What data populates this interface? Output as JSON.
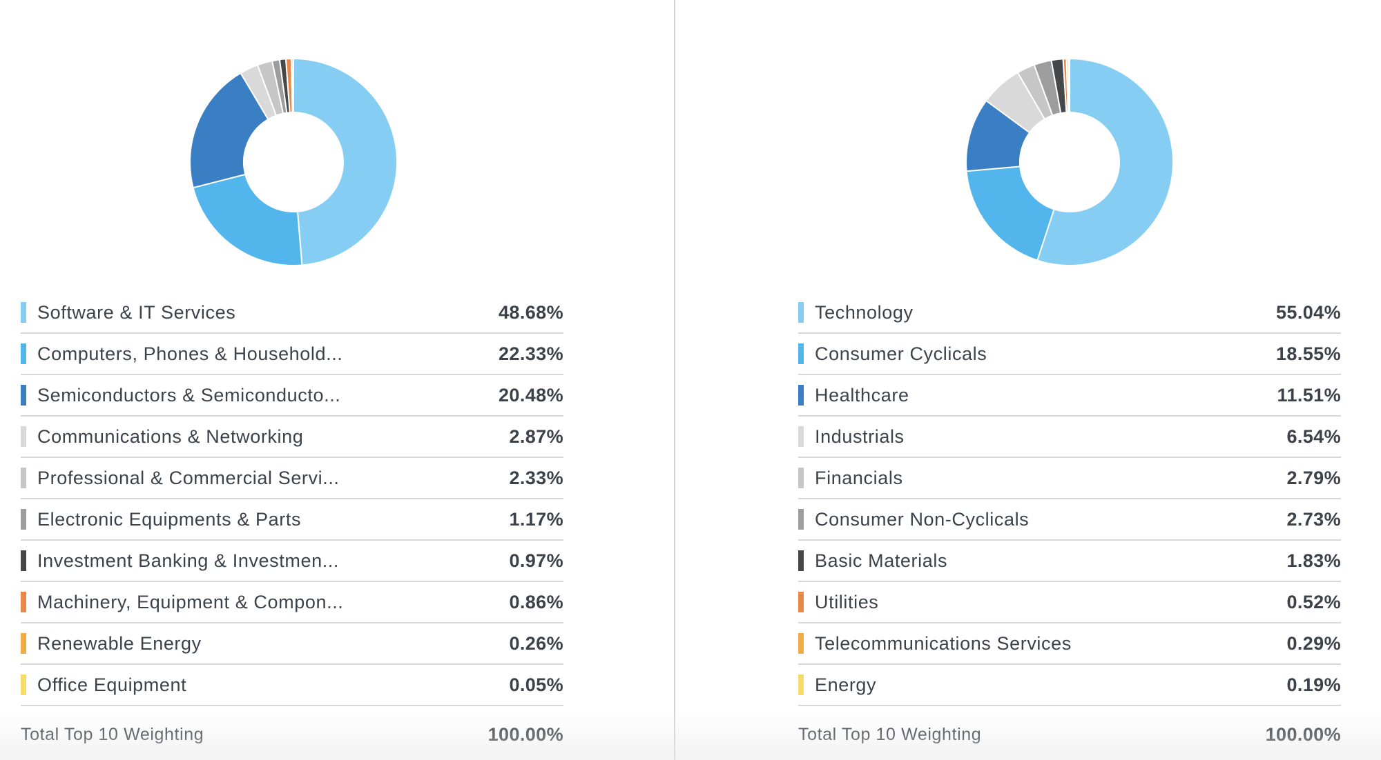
{
  "chart_data": [
    {
      "type": "pie",
      "donut": true,
      "categories": [
        "Software & IT Services",
        "Computers, Phones & Household...",
        "Semiconductors & Semiconducto...",
        "Communications & Networking",
        "Professional & Commercial Servi...",
        "Electronic Equipments & Parts",
        "Investment Banking & Investmen...",
        "Machinery, Equipment & Compon...",
        "Renewable Energy",
        "Office Equipment"
      ],
      "values": [
        48.68,
        22.33,
        20.48,
        2.87,
        2.33,
        1.17,
        0.97,
        0.86,
        0.26,
        0.05
      ],
      "display_values": [
        "48.68%",
        "22.33%",
        "20.48%",
        "2.87%",
        "2.33%",
        "1.17%",
        "0.97%",
        "0.86%",
        "0.26%",
        "0.05%"
      ],
      "colors": [
        "#86cdf3",
        "#52b6ec",
        "#3a7fc4",
        "#d9d9d9",
        "#c6c6c6",
        "#9d9d9d",
        "#45484b",
        "#e8894a",
        "#f0ac45",
        "#f7dc6a"
      ],
      "total_label": "Total Top 10 Weighting",
      "total_value": "100.00%"
    },
    {
      "type": "pie",
      "donut": true,
      "categories": [
        "Technology",
        "Consumer Cyclicals",
        "Healthcare",
        "Industrials",
        "Financials",
        "Consumer Non-Cyclicals",
        "Basic Materials",
        "Utilities",
        "Telecommunications Services",
        "Energy"
      ],
      "values": [
        55.04,
        18.55,
        11.51,
        6.54,
        2.79,
        2.73,
        1.83,
        0.52,
        0.29,
        0.19
      ],
      "display_values": [
        "55.04%",
        "18.55%",
        "11.51%",
        "6.54%",
        "2.79%",
        "2.73%",
        "1.83%",
        "0.52%",
        "0.29%",
        "0.19%"
      ],
      "colors": [
        "#86cdf3",
        "#52b6ec",
        "#3a7fc4",
        "#d9d9d9",
        "#c6c6c6",
        "#9d9d9d",
        "#45484b",
        "#e8894a",
        "#f0ac45",
        "#f7dc6a"
      ],
      "total_label": "Total Top 10 Weighting",
      "total_value": "100.00%"
    }
  ]
}
